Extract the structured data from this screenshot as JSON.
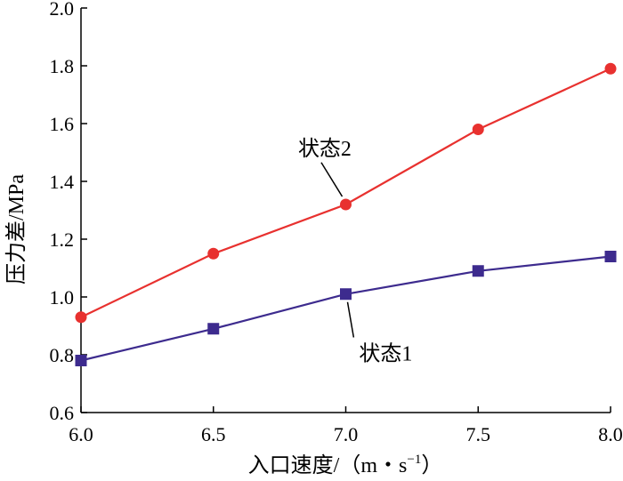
{
  "chart_data": {
    "type": "line",
    "xlabel": "入口速度/（m・s",
    "xlabel_sup": "−1",
    "xlabel_end": "）",
    "ylabel": "压力差/MPa",
    "xlim": [
      6.0,
      8.0
    ],
    "ylim": [
      0.6,
      2.0
    ],
    "xticks": [
      6.0,
      6.5,
      7.0,
      7.5,
      8.0
    ],
    "yticks": [
      0.6,
      0.8,
      1.0,
      1.2,
      1.4,
      1.6,
      1.8,
      2.0
    ],
    "xtick_labels": [
      "6.0",
      "6.5",
      "7.0",
      "7.5",
      "8.0"
    ],
    "ytick_labels": [
      "0.6",
      "0.8",
      "1.0",
      "1.2",
      "1.4",
      "1.6",
      "1.8",
      "2.0"
    ],
    "grid": false,
    "legend": "none",
    "x": [
      6.0,
      6.5,
      7.0,
      7.5,
      8.0
    ],
    "series": [
      {
        "name": "状态1",
        "values": [
          0.78,
          0.89,
          1.01,
          1.09,
          1.14
        ],
        "color": "#3d2b8e",
        "marker": "square",
        "annotation": {
          "label_x": 7.05,
          "label_y": 0.78,
          "pointer_to_x": 7.0,
          "pointer_to_y": 1.01
        }
      },
      {
        "name": "状态2",
        "values": [
          0.93,
          1.15,
          1.32,
          1.58,
          1.79
        ],
        "color": "#e8312f",
        "marker": "circle",
        "annotation": {
          "label_x": 6.82,
          "label_y": 1.49,
          "pointer_to_x": 7.0,
          "pointer_to_y": 1.32
        }
      }
    ]
  }
}
